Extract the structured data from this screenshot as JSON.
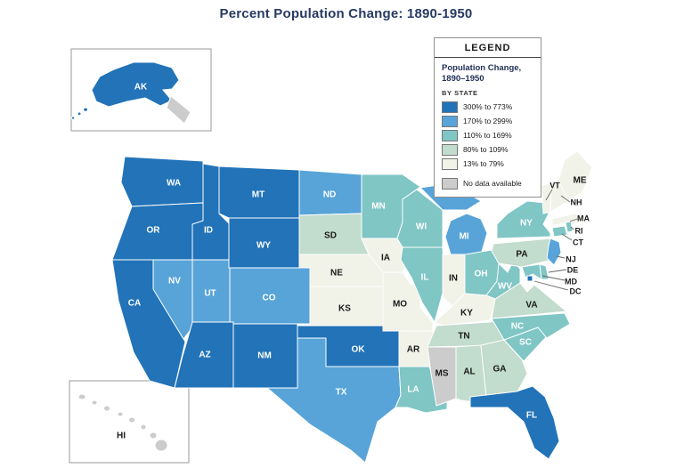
{
  "title": "Percent Population Change: 1890-1950",
  "legend": {
    "header": "LEGEND",
    "subtitle_line1": "Population Change,",
    "subtitle_line2": "1890–1950",
    "by_state": "BY STATE",
    "categories": [
      {
        "key": "c1",
        "label": "300% to 773%"
      },
      {
        "key": "c2",
        "label": "170% to 299%"
      },
      {
        "key": "c3",
        "label": "110% to 169%"
      },
      {
        "key": "c4",
        "label": "80% to 109%"
      },
      {
        "key": "c5",
        "label": "13% to 79%"
      },
      {
        "key": "nodata",
        "label": "No data available"
      }
    ]
  },
  "colors": {
    "c1": "#2273b8",
    "c2": "#58a4d8",
    "c3": "#7fc6c5",
    "c4": "#c2dccd",
    "c5": "#f1f2e8",
    "nodata": "#cccccc"
  },
  "map": {
    "states": [
      {
        "code": "WA",
        "label": "WA",
        "category": "c1"
      },
      {
        "code": "OR",
        "label": "OR",
        "category": "c1"
      },
      {
        "code": "CA",
        "label": "CA",
        "category": "c1"
      },
      {
        "code": "ID",
        "label": "ID",
        "category": "c1"
      },
      {
        "code": "NV",
        "label": "NV",
        "category": "c2"
      },
      {
        "code": "UT",
        "label": "UT",
        "category": "c2"
      },
      {
        "code": "MT",
        "label": "MT",
        "category": "c1"
      },
      {
        "code": "WY",
        "label": "WY",
        "category": "c1"
      },
      {
        "code": "CO",
        "label": "CO",
        "category": "c2"
      },
      {
        "code": "AZ",
        "label": "AZ",
        "category": "c1"
      },
      {
        "code": "NM",
        "label": "NM",
        "category": "c1"
      },
      {
        "code": "ND",
        "label": "ND",
        "category": "c2"
      },
      {
        "code": "SD",
        "label": "SD",
        "category": "c4"
      },
      {
        "code": "NE",
        "label": "NE",
        "category": "c5"
      },
      {
        "code": "KS",
        "label": "KS",
        "category": "c5"
      },
      {
        "code": "OK",
        "label": "OK",
        "category": "c1"
      },
      {
        "code": "TX",
        "label": "TX",
        "category": "c2"
      },
      {
        "code": "MN",
        "label": "MN",
        "category": "c3"
      },
      {
        "code": "IA",
        "label": "IA",
        "category": "c5"
      },
      {
        "code": "MO",
        "label": "MO",
        "category": "c5"
      },
      {
        "code": "AR",
        "label": "AR",
        "category": "c5"
      },
      {
        "code": "LA",
        "label": "LA",
        "category": "c3"
      },
      {
        "code": "WI",
        "label": "WI",
        "category": "c3"
      },
      {
        "code": "IL",
        "label": "IL",
        "category": "c3"
      },
      {
        "code": "IN",
        "label": "IN",
        "category": "c5"
      },
      {
        "code": "MI",
        "label": "MI",
        "category": "c2"
      },
      {
        "code": "OH",
        "label": "OH",
        "category": "c3"
      },
      {
        "code": "KY",
        "label": "KY",
        "category": "c5"
      },
      {
        "code": "TN",
        "label": "TN",
        "category": "c4"
      },
      {
        "code": "MS",
        "label": "MS",
        "category": "nodata"
      },
      {
        "code": "AL",
        "label": "AL",
        "category": "c4"
      },
      {
        "code": "GA",
        "label": "GA",
        "category": "c4"
      },
      {
        "code": "FL",
        "label": "FL",
        "category": "c1"
      },
      {
        "code": "SC",
        "label": "SC",
        "category": "c3"
      },
      {
        "code": "NC",
        "label": "NC",
        "category": "c3"
      },
      {
        "code": "VA",
        "label": "VA",
        "category": "c4"
      },
      {
        "code": "WV",
        "label": "WV",
        "category": "c3"
      },
      {
        "code": "PA",
        "label": "PA",
        "category": "c4"
      },
      {
        "code": "NY",
        "label": "NY",
        "category": "c3"
      },
      {
        "code": "VT",
        "label": "VT",
        "category": "c5"
      },
      {
        "code": "NH",
        "label": "NH",
        "category": "c5"
      },
      {
        "code": "ME",
        "label": "ME",
        "category": "c5"
      },
      {
        "code": "MA",
        "label": "MA",
        "category": "c5"
      },
      {
        "code": "RI",
        "label": "RI",
        "category": "c3"
      },
      {
        "code": "CT",
        "label": "CT",
        "category": "c3"
      },
      {
        "code": "NJ",
        "label": "NJ",
        "category": "c2"
      },
      {
        "code": "MD",
        "label": "MD",
        "category": "c3"
      },
      {
        "code": "DE",
        "label": "DE",
        "category": "c3"
      },
      {
        "code": "DC",
        "label": "DC",
        "category": "c1"
      },
      {
        "code": "AK",
        "label": "AK",
        "category": "c1"
      },
      {
        "code": "HI",
        "label": "HI",
        "category": "nodata"
      }
    ]
  }
}
